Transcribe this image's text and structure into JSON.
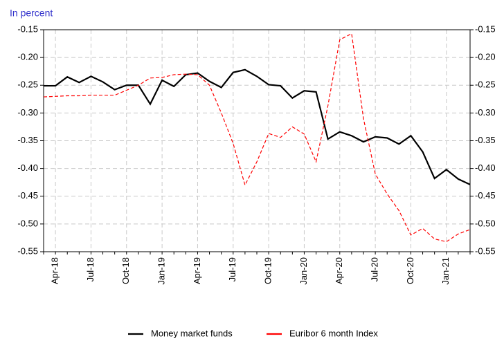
{
  "chart_data": {
    "type": "line",
    "y_label": "In percent",
    "categories": [
      null,
      "Apr-18",
      null,
      null,
      "Jul-18",
      null,
      null,
      "Oct-18",
      null,
      null,
      "Jan-19",
      null,
      null,
      "Apr-19",
      null,
      null,
      "Jul-19",
      null,
      null,
      "Oct-19",
      null,
      null,
      "Jan-20",
      null,
      null,
      "Apr-20",
      null,
      null,
      "Jul-20",
      null,
      null,
      "Oct-20",
      null,
      null,
      "Jan-21",
      null,
      null
    ],
    "series": [
      {
        "name": "Money market funds",
        "color": "#000000",
        "dashed": false,
        "values": [
          -0.251,
          -0.251,
          -0.235,
          -0.245,
          -0.234,
          -0.244,
          -0.258,
          -0.25,
          -0.25,
          -0.284,
          -0.241,
          -0.252,
          -0.231,
          -0.228,
          -0.243,
          -0.254,
          -0.227,
          -0.222,
          -0.234,
          -0.249,
          -0.251,
          -0.273,
          -0.26,
          -0.262,
          -0.347,
          -0.334,
          -0.341,
          -0.352,
          -0.343,
          -0.345,
          -0.356,
          -0.341,
          -0.37,
          -0.418,
          -0.402,
          -0.419,
          -0.429
        ]
      },
      {
        "name": "Euribor 6 month Index",
        "color": "#ff0000",
        "dashed": true,
        "values": [
          -0.271,
          -0.27,
          -0.269,
          -0.269,
          -0.268,
          -0.268,
          -0.268,
          -0.259,
          -0.25,
          -0.237,
          -0.236,
          -0.231,
          -0.23,
          -0.231,
          -0.25,
          -0.3,
          -0.355,
          -0.43,
          -0.388,
          -0.337,
          -0.344,
          -0.325,
          -0.338,
          -0.388,
          -0.287,
          -0.168,
          -0.157,
          -0.31,
          -0.41,
          -0.446,
          -0.476,
          -0.52,
          -0.508,
          -0.527,
          -0.532,
          -0.518,
          -0.51
        ]
      }
    ],
    "ylim": [
      -0.55,
      -0.15
    ],
    "yticks": [
      -0.15,
      {
        "value": -0.2,
        "label": "-0.20"
      },
      -0.25,
      {
        "value": -0.3,
        "label": "-0.30"
      },
      -0.35,
      {
        "value": -0.4,
        "label": "-0.40"
      },
      -0.45,
      {
        "value": -0.5,
        "label": "-0.50"
      },
      -0.55
    ],
    "y2lim": [
      -0.55,
      -0.15
    ],
    "y2ticks": [
      -0.15,
      {
        "value": -0.2,
        "label": "-0.20"
      },
      -0.25,
      {
        "value": -0.3,
        "label": "-0.30"
      },
      -0.35,
      {
        "value": -0.4,
        "label": "-0.40"
      },
      -0.45,
      {
        "value": -0.5,
        "label": "-0.50"
      },
      -0.55
    ],
    "grid": true,
    "legend": "bottom"
  }
}
